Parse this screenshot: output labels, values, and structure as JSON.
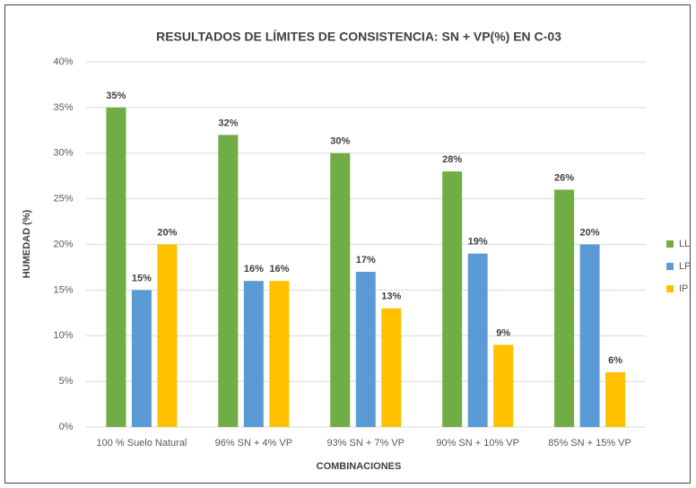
{
  "chart_data": {
    "type": "bar",
    "title": "RESULTADOS DE LÍMITES DE CONSISTENCIA: SN + VP(%) EN C-03",
    "x_label": "COMBINACIONES",
    "y_label": "HUMEDAD (%)",
    "categories": [
      "100 % Suelo Natural",
      "96% SN + 4% VP",
      "93% SN + 7% VP",
      "90% SN + 10% VP",
      "85% SN + 15% VP"
    ],
    "series": [
      {
        "name": "LL",
        "color": "#70ad47",
        "values": [
          35,
          32,
          30,
          28,
          26
        ],
        "value_labels": [
          "35%",
          "32%",
          "30%",
          "28%",
          "26%"
        ]
      },
      {
        "name": "LP",
        "color": "#5b9bd5",
        "values": [
          15,
          16,
          17,
          19,
          20
        ],
        "value_labels": [
          "15%",
          "16%",
          "17%",
          "19%",
          "20%"
        ]
      },
      {
        "name": "IP",
        "color": "#ffc000",
        "values": [
          20,
          16,
          13,
          9,
          6
        ],
        "value_labels": [
          "20%",
          "16%",
          "13%",
          "9%",
          "6%"
        ]
      }
    ],
    "ylim": [
      0,
      40
    ],
    "yticks": [
      {
        "value": 0,
        "label": "0%"
      },
      {
        "value": 5,
        "label": "5%"
      },
      {
        "value": 10,
        "label": "10%"
      },
      {
        "value": 15,
        "label": "15%"
      },
      {
        "value": 20,
        "label": "20%"
      },
      {
        "value": 25,
        "label": "25%"
      },
      {
        "value": 30,
        "label": "30%"
      },
      {
        "value": 35,
        "label": "35%"
      },
      {
        "value": 40,
        "label": "40%"
      }
    ],
    "grid": true,
    "legend": "right"
  }
}
